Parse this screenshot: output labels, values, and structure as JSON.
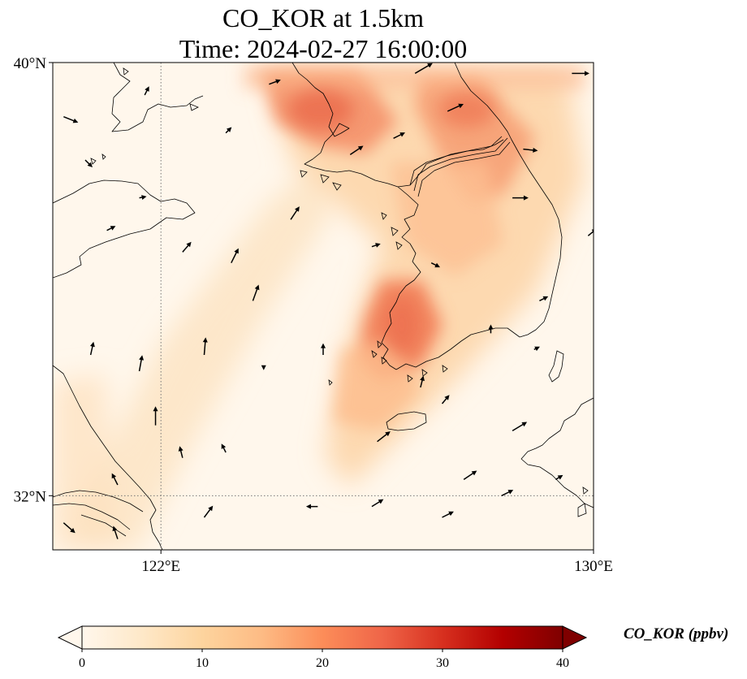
{
  "title": {
    "line1": "CO_KOR at 1.5km",
    "line2": "Time: 2024-02-27 16:00:00"
  },
  "map": {
    "lon_range": [
      120,
      130
    ],
    "lat_range": [
      31,
      40
    ],
    "lat_ticks": [
      {
        "value": 40,
        "label": "40°N"
      },
      {
        "value": 32,
        "label": "32°N"
      }
    ],
    "lon_ticks": [
      {
        "value": 122,
        "label": "122°E"
      },
      {
        "value": 130,
        "label": "130°E"
      }
    ],
    "gridlines": {
      "lon": [
        122
      ],
      "lat": [
        32
      ],
      "style": "dotted"
    }
  },
  "colorbar": {
    "label": "CO_KOR (ppbv)",
    "min": 0,
    "max": 40,
    "extend": "both",
    "colormap": "OrRd",
    "colors": [
      "#fff7ec",
      "#fee8c8",
      "#fdd49e",
      "#fdbb84",
      "#fc8d59",
      "#ef6548",
      "#d7301f",
      "#b30000",
      "#7f0000"
    ],
    "ticks": [
      {
        "value": 0,
        "label": "0"
      },
      {
        "value": 10,
        "label": "10"
      },
      {
        "value": 20,
        "label": "20"
      },
      {
        "value": 30,
        "label": "30"
      },
      {
        "value": 40,
        "label": "40"
      }
    ]
  },
  "concentration_field": [
    {
      "name": "north-plume",
      "lon": 125.3,
      "lat": 39.0,
      "value": 22
    },
    {
      "name": "north-plume-core",
      "lon": 125.0,
      "lat": 39.3,
      "value": 24
    },
    {
      "name": "northeast-plume",
      "lon": 127.8,
      "lat": 38.6,
      "value": 20
    },
    {
      "name": "northeast-plume-upper",
      "lon": 127.0,
      "lat": 39.4,
      "value": 18
    },
    {
      "name": "peninsula-central",
      "lon": 127.0,
      "lat": 37.0,
      "value": 12
    },
    {
      "name": "southwest-plume",
      "lon": 126.5,
      "lat": 35.3,
      "value": 21
    },
    {
      "name": "southwest-plume-lower",
      "lon": 126.2,
      "lat": 34.6,
      "value": 16
    },
    {
      "name": "yellow-sea-band",
      "lon": 122.8,
      "lat": 34.5,
      "value": 6
    },
    {
      "name": "china-coast",
      "lon": 120.8,
      "lat": 33.5,
      "value": 7
    }
  ],
  "wind_vectors": [
    {
      "lon": 120.2,
      "lat": 39.0,
      "u": 1.0,
      "v": -0.4
    },
    {
      "lon": 120.6,
      "lat": 38.2,
      "u": 0.5,
      "v": -0.5
    },
    {
      "lon": 121.7,
      "lat": 39.4,
      "u": 0.3,
      "v": 0.6
    },
    {
      "lon": 123.2,
      "lat": 38.7,
      "u": 0.4,
      "v": 0.4
    },
    {
      "lon": 124.0,
      "lat": 39.6,
      "u": 0.8,
      "v": 0.3
    },
    {
      "lon": 125.5,
      "lat": 38.3,
      "u": 0.9,
      "v": 0.6
    },
    {
      "lon": 126.3,
      "lat": 38.6,
      "u": 0.8,
      "v": 0.4
    },
    {
      "lon": 126.7,
      "lat": 39.8,
      "u": 1.2,
      "v": 0.7
    },
    {
      "lon": 127.3,
      "lat": 39.1,
      "u": 1.1,
      "v": 0.5
    },
    {
      "lon": 129.6,
      "lat": 39.8,
      "u": 1.2,
      "v": 0.0
    },
    {
      "lon": 128.5,
      "lat": 37.5,
      "u": 1.1,
      "v": 0.0
    },
    {
      "lon": 128.7,
      "lat": 38.4,
      "u": 1.0,
      "v": -0.1
    },
    {
      "lon": 127.0,
      "lat": 36.3,
      "u": 0.6,
      "v": -0.3
    },
    {
      "lon": 125.9,
      "lat": 36.6,
      "u": 0.6,
      "v": 0.2
    },
    {
      "lon": 124.4,
      "lat": 37.1,
      "u": 0.6,
      "v": 0.9
    },
    {
      "lon": 123.3,
      "lat": 36.3,
      "u": 0.5,
      "v": 1.0
    },
    {
      "lon": 122.4,
      "lat": 36.5,
      "u": 0.6,
      "v": 0.7
    },
    {
      "lon": 121.6,
      "lat": 37.5,
      "u": 0.5,
      "v": 0.1
    },
    {
      "lon": 121.0,
      "lat": 36.9,
      "u": 0.6,
      "v": 0.3
    },
    {
      "lon": 122.8,
      "lat": 34.6,
      "u": 0.1,
      "v": 1.2
    },
    {
      "lon": 121.6,
      "lat": 34.3,
      "u": 0.2,
      "v": 1.1
    },
    {
      "lon": 120.7,
      "lat": 34.6,
      "u": 0.2,
      "v": 0.9
    },
    {
      "lon": 123.7,
      "lat": 35.6,
      "u": 0.4,
      "v": 1.1
    },
    {
      "lon": 121.9,
      "lat": 33.3,
      "u": 0.0,
      "v": 1.3
    },
    {
      "lon": 122.4,
      "lat": 32.7,
      "u": -0.2,
      "v": 0.8
    },
    {
      "lon": 123.2,
      "lat": 32.8,
      "u": -0.3,
      "v": 0.6
    },
    {
      "lon": 121.2,
      "lat": 32.2,
      "u": -0.4,
      "v": 0.8
    },
    {
      "lon": 122.8,
      "lat": 31.6,
      "u": 0.6,
      "v": 0.8
    },
    {
      "lon": 120.2,
      "lat": 31.5,
      "u": 0.8,
      "v": -0.7
    },
    {
      "lon": 121.2,
      "lat": 31.2,
      "u": -0.3,
      "v": 0.9
    },
    {
      "lon": 124.9,
      "lat": 31.8,
      "u": -0.8,
      "v": 0.0
    },
    {
      "lon": 125.9,
      "lat": 31.8,
      "u": 0.8,
      "v": 0.5
    },
    {
      "lon": 127.2,
      "lat": 31.6,
      "u": 0.8,
      "v": 0.4
    },
    {
      "lon": 128.3,
      "lat": 32.0,
      "u": 0.8,
      "v": 0.4
    },
    {
      "lon": 129.3,
      "lat": 32.3,
      "u": 0.5,
      "v": 0.3
    },
    {
      "lon": 128.5,
      "lat": 33.2,
      "u": 1.0,
      "v": 0.6
    },
    {
      "lon": 127.2,
      "lat": 33.7,
      "u": 0.5,
      "v": 0.6
    },
    {
      "lon": 126.0,
      "lat": 33.0,
      "u": 0.9,
      "v": 0.7
    },
    {
      "lon": 127.6,
      "lat": 32.3,
      "u": 0.9,
      "v": 0.6
    },
    {
      "lon": 129.0,
      "lat": 35.6,
      "u": 0.6,
      "v": 0.3
    },
    {
      "lon": 128.1,
      "lat": 35.0,
      "u": 0.0,
      "v": 0.6
    },
    {
      "lon": 126.8,
      "lat": 34.0,
      "u": 0.2,
      "v": 0.8
    },
    {
      "lon": 129.9,
      "lat": 36.8,
      "u": 0.6,
      "v": 0.5
    },
    {
      "lon": 125.0,
      "lat": 34.6,
      "u": 0.0,
      "v": 0.8
    },
    {
      "lon": 123.9,
      "lat": 34.4,
      "u": 0.0,
      "v": -0.3
    },
    {
      "lon": 128.9,
      "lat": 34.7,
      "u": 0.4,
      "v": 0.2
    }
  ]
}
